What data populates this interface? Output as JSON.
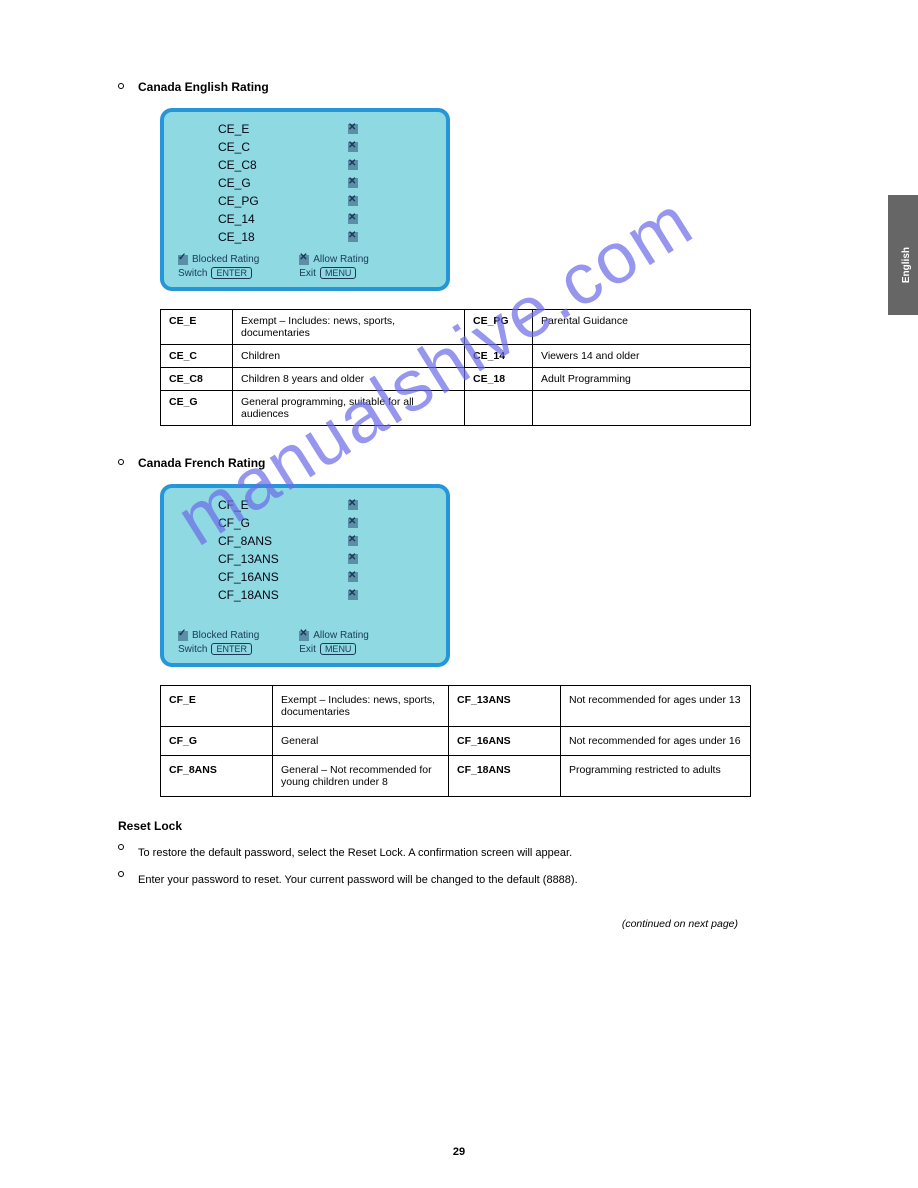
{
  "section1": {
    "bullet_title": "Canada English Rating",
    "panel": {
      "items": [
        "CE_E",
        "CE_C",
        "CE_C8",
        "CE_G",
        "CE_PG",
        "CE_14",
        "CE_18"
      ],
      "blocked_label": "Blocked Rating",
      "allow_label": "Allow Rating",
      "switch_label": "Switch",
      "enter_btn": "ENTER",
      "exit_label": "Exit",
      "menu_btn": "MENU"
    },
    "table_rows": [
      {
        "code1": "CE_E",
        "desc1": "Exempt – Includes: news, sports, documentaries",
        "code2": "CE_PG",
        "desc2": "Parental Guidance"
      },
      {
        "code1": "CE_C",
        "desc1": "Children",
        "code2": "CE_14",
        "desc2": "Viewers 14 and older"
      },
      {
        "code1": "CE_C8",
        "desc1": "Children 8 years and older",
        "code2": "CE_18",
        "desc2": "Adult Programming"
      },
      {
        "code1": "CE_G",
        "desc1": "General programming, suitable for all audiences",
        "code2": "",
        "desc2": ""
      }
    ]
  },
  "section2": {
    "bullet_title": "Canada French Rating",
    "panel": {
      "items": [
        "CF_E",
        "CF_G",
        "CF_8ANS",
        "CF_13ANS",
        "CF_16ANS",
        "CF_18ANS"
      ],
      "blocked_label": "Blocked Rating",
      "allow_label": "Allow Rating",
      "switch_label": "Switch",
      "enter_btn": "ENTER",
      "exit_label": "Exit",
      "menu_btn": "MENU"
    },
    "table_rows": [
      {
        "code1": "CF_E",
        "desc1": "Exempt – Includes: news, sports, documentaries",
        "code2": "CF_13ANS",
        "desc2": "Not recommended for ages under 13"
      },
      {
        "code1": "CF_G",
        "desc1": "General",
        "code2": "CF_16ANS",
        "desc2": "Not recommended for ages under 16"
      },
      {
        "code1": "CF_8ANS",
        "desc1": "General – Not recommended for young children under 8",
        "code2": "CF_18ANS",
        "desc2": "Programming restricted to adults"
      }
    ]
  },
  "section3": {
    "heading": "Reset Lock",
    "bullet1": "To restore the default password, select the Reset Lock. A confirmation screen will appear.",
    "bullet2": "Enter your password to reset. Your current password will be changed to the default (8888).",
    "next_page_note": "(continued on next page)"
  },
  "english_tab": "English",
  "page_number": "29"
}
